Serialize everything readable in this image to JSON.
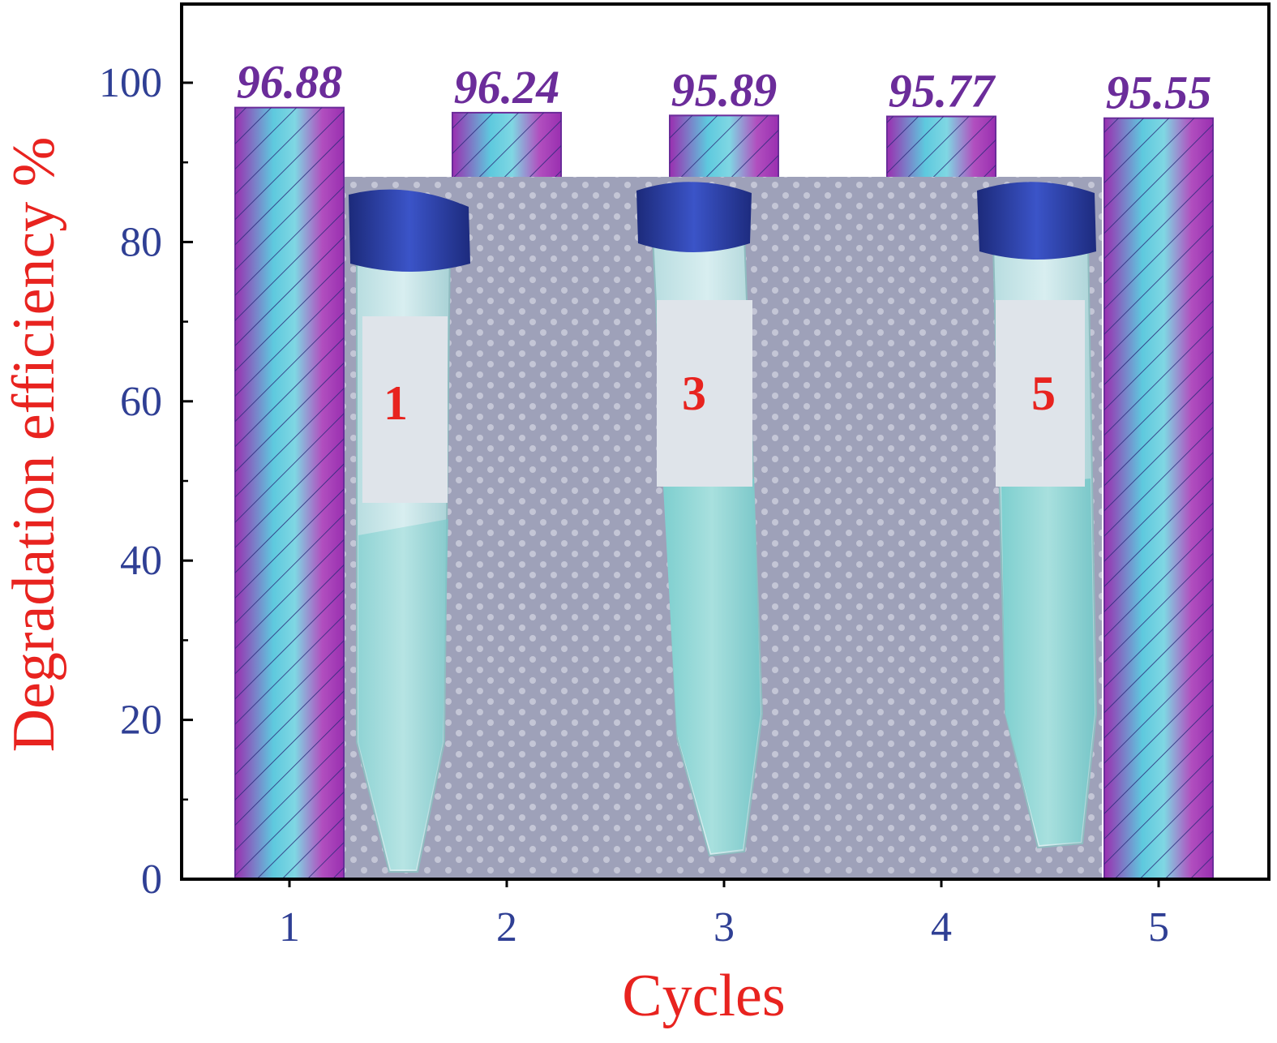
{
  "chart_data": {
    "type": "bar",
    "categories": [
      "1",
      "2",
      "3",
      "4",
      "5"
    ],
    "values": [
      96.88,
      96.24,
      95.89,
      95.77,
      95.55
    ],
    "value_labels": [
      "96.88",
      "96.24",
      "95.89",
      "95.77",
      "95.55"
    ],
    "title": "",
    "xlabel": "Cycles",
    "ylabel": "Degradation efficiency %",
    "ylim": [
      0,
      110
    ],
    "yticks": [
      "0",
      "20",
      "40",
      "60",
      "80",
      "100"
    ],
    "grid": false,
    "legend": "none"
  },
  "inset": {
    "tube_labels": [
      "1",
      "3",
      "5"
    ]
  },
  "colors": {
    "axis_label": "#2f3f94",
    "axis_title": "#e8231f",
    "value_label": "#6b2c9a",
    "bar_cyan": "#3fc9d4",
    "bar_purple": "#9a2fb0",
    "tube_label": "#e8231f"
  }
}
